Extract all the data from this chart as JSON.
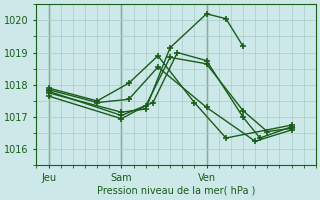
{
  "title": "Pression niveau de la mer( hPa )",
  "background_color": "#cce8e8",
  "grid_color": "#aacccc",
  "line_color": "#1a5c1a",
  "marker_color": "#1a5c1a",
  "ylim": [
    1015.5,
    1020.5
  ],
  "yticks": [
    1016,
    1017,
    1018,
    1019,
    1020
  ],
  "xtick_labels": [
    "Jeu",
    "Sam",
    "Ven"
  ],
  "xtick_positions": [
    0.5,
    3.5,
    7.0
  ],
  "vlines": [
    0.5,
    3.5,
    7.0
  ],
  "vline_color": "#336633",
  "xlim": [
    0.0,
    11.5
  ],
  "lines": [
    {
      "x": [
        0.5,
        3.5,
        4.5,
        5.5,
        7.0,
        7.8,
        8.5
      ],
      "y": [
        1017.75,
        1017.15,
        1017.25,
        1019.15,
        1020.2,
        1020.05,
        1019.2
      ]
    },
    {
      "x": [
        0.5,
        3.5,
        4.5,
        5.5,
        7.0,
        8.5,
        9.5,
        10.5
      ],
      "y": [
        1017.65,
        1016.95,
        1017.35,
        1018.85,
        1018.65,
        1017.2,
        1016.55,
        1016.65
      ]
    },
    {
      "x": [
        0.5,
        3.5,
        4.8,
        5.8,
        7.0,
        8.5,
        9.2,
        10.5
      ],
      "y": [
        1017.8,
        1017.05,
        1017.45,
        1019.0,
        1018.75,
        1017.0,
        1016.35,
        1016.7
      ]
    },
    {
      "x": [
        0.5,
        2.5,
        3.8,
        5.0,
        7.0,
        9.0,
        10.5
      ],
      "y": [
        1017.85,
        1017.45,
        1017.55,
        1018.55,
        1017.3,
        1016.25,
        1016.6
      ]
    },
    {
      "x": [
        0.5,
        2.5,
        3.8,
        5.0,
        6.5,
        7.8,
        10.5
      ],
      "y": [
        1017.9,
        1017.5,
        1018.05,
        1018.9,
        1017.45,
        1016.35,
        1016.75
      ]
    }
  ]
}
